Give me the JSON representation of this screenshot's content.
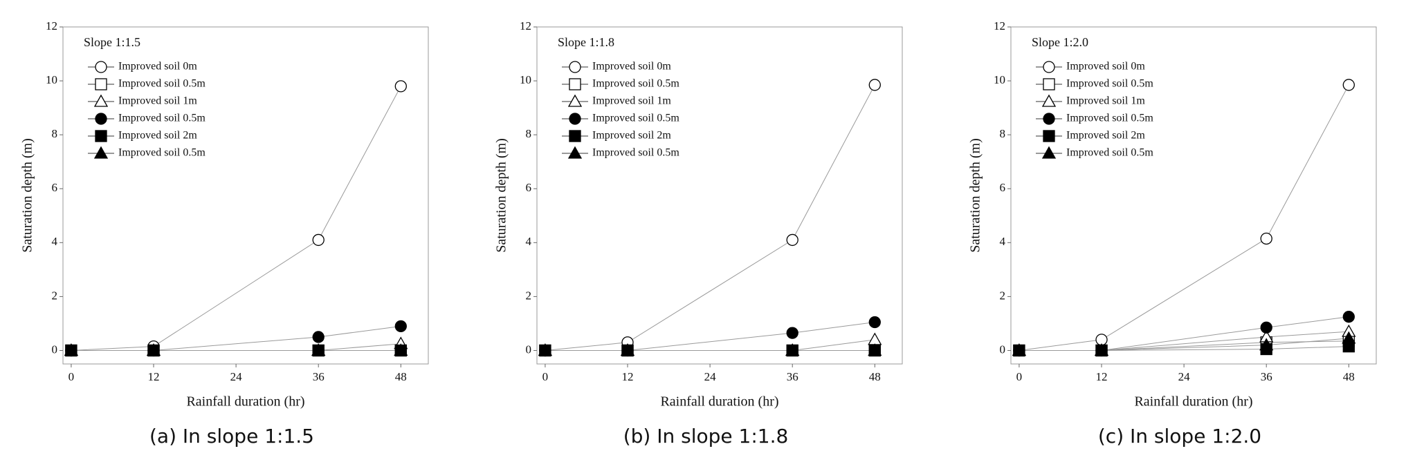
{
  "chart_data": [
    {
      "type": "line",
      "title": "Slope 1:1.5",
      "caption": "(a) In slope 1:1.5",
      "x_label": "Rainfall duration (hr)",
      "y_label": "Saturation depth (m)",
      "x": [
        0,
        12,
        36,
        48
      ],
      "xlim": [
        -1.2,
        52
      ],
      "ylim": [
        -0.5,
        12
      ],
      "xticks": [
        0,
        12,
        24,
        36,
        48
      ],
      "yticks": [
        0,
        2,
        4,
        6,
        8,
        10,
        12
      ],
      "series": [
        {
          "name": "Improved soil 0m",
          "marker": "circle",
          "filled": false,
          "values": [
            0,
            0.15,
            4.1,
            9.8
          ]
        },
        {
          "name": "Improved soil 0.5m",
          "marker": "square",
          "filled": false,
          "values": [
            0,
            0,
            0,
            0
          ]
        },
        {
          "name": "Improved soil 1m",
          "marker": "triangle",
          "filled": false,
          "values": [
            0,
            0,
            0,
            0.25
          ]
        },
        {
          "name": "Improved soil 0.5m",
          "marker": "circle",
          "filled": true,
          "values": [
            0,
            0,
            0.5,
            0.9
          ]
        },
        {
          "name": "Improved soil 2m",
          "marker": "square",
          "filled": true,
          "values": [
            0,
            0,
            0,
            0
          ]
        },
        {
          "name": "Improved soil 0.5m",
          "marker": "triangle",
          "filled": true,
          "values": [
            0,
            0,
            0,
            0
          ]
        }
      ]
    },
    {
      "type": "line",
      "title": "Slope 1:1.8",
      "caption": "(b) In slope 1:1.8",
      "x_label": "Rainfall duration (hr)",
      "y_label": "Saturation depth (m)",
      "x": [
        0,
        12,
        36,
        48
      ],
      "xlim": [
        -1.2,
        52
      ],
      "ylim": [
        -0.5,
        12
      ],
      "xticks": [
        0,
        12,
        24,
        36,
        48
      ],
      "yticks": [
        0,
        2,
        4,
        6,
        8,
        10,
        12
      ],
      "series": [
        {
          "name": "Improved soil 0m",
          "marker": "circle",
          "filled": false,
          "values": [
            0,
            0.3,
            4.1,
            9.85
          ]
        },
        {
          "name": "Improved soil 0.5m",
          "marker": "square",
          "filled": false,
          "values": [
            0,
            0,
            0,
            0
          ]
        },
        {
          "name": "Improved soil 1m",
          "marker": "triangle",
          "filled": false,
          "values": [
            0,
            0,
            0,
            0.4
          ]
        },
        {
          "name": "Improved soil 0.5m",
          "marker": "circle",
          "filled": true,
          "values": [
            0,
            0,
            0.65,
            1.05
          ]
        },
        {
          "name": "Improved soil 2m",
          "marker": "square",
          "filled": true,
          "values": [
            0,
            0,
            0,
            0
          ]
        },
        {
          "name": "Improved soil 0.5m",
          "marker": "triangle",
          "filled": true,
          "values": [
            0,
            0,
            0,
            0
          ]
        }
      ]
    },
    {
      "type": "line",
      "title": "Slope 1:2.0",
      "caption": "(c) In slope 1:2.0",
      "x_label": "Rainfall duration (hr)",
      "y_label": "Saturation depth (m)",
      "x": [
        0,
        12,
        36,
        48
      ],
      "xlim": [
        -1.2,
        52
      ],
      "ylim": [
        -0.5,
        12
      ],
      "xticks": [
        0,
        12,
        24,
        36,
        48
      ],
      "yticks": [
        0,
        2,
        4,
        6,
        8,
        10,
        12
      ],
      "series": [
        {
          "name": "Improved soil 0m",
          "marker": "circle",
          "filled": false,
          "values": [
            0,
            0.4,
            4.15,
            9.85
          ]
        },
        {
          "name": "Improved soil 0.5m",
          "marker": "square",
          "filled": false,
          "values": [
            0,
            0,
            0.3,
            0.35
          ]
        },
        {
          "name": "Improved soil 1m",
          "marker": "triangle",
          "filled": false,
          "values": [
            0,
            0,
            0.5,
            0.7
          ]
        },
        {
          "name": "Improved soil 0.5m",
          "marker": "circle",
          "filled": true,
          "values": [
            0,
            0,
            0.85,
            1.25
          ]
        },
        {
          "name": "Improved soil 2m",
          "marker": "square",
          "filled": true,
          "values": [
            0,
            0,
            0.05,
            0.15
          ]
        },
        {
          "name": "Improved soil 0.5m",
          "marker": "triangle",
          "filled": true,
          "values": [
            0,
            0,
            0.2,
            0.45
          ]
        }
      ]
    }
  ]
}
